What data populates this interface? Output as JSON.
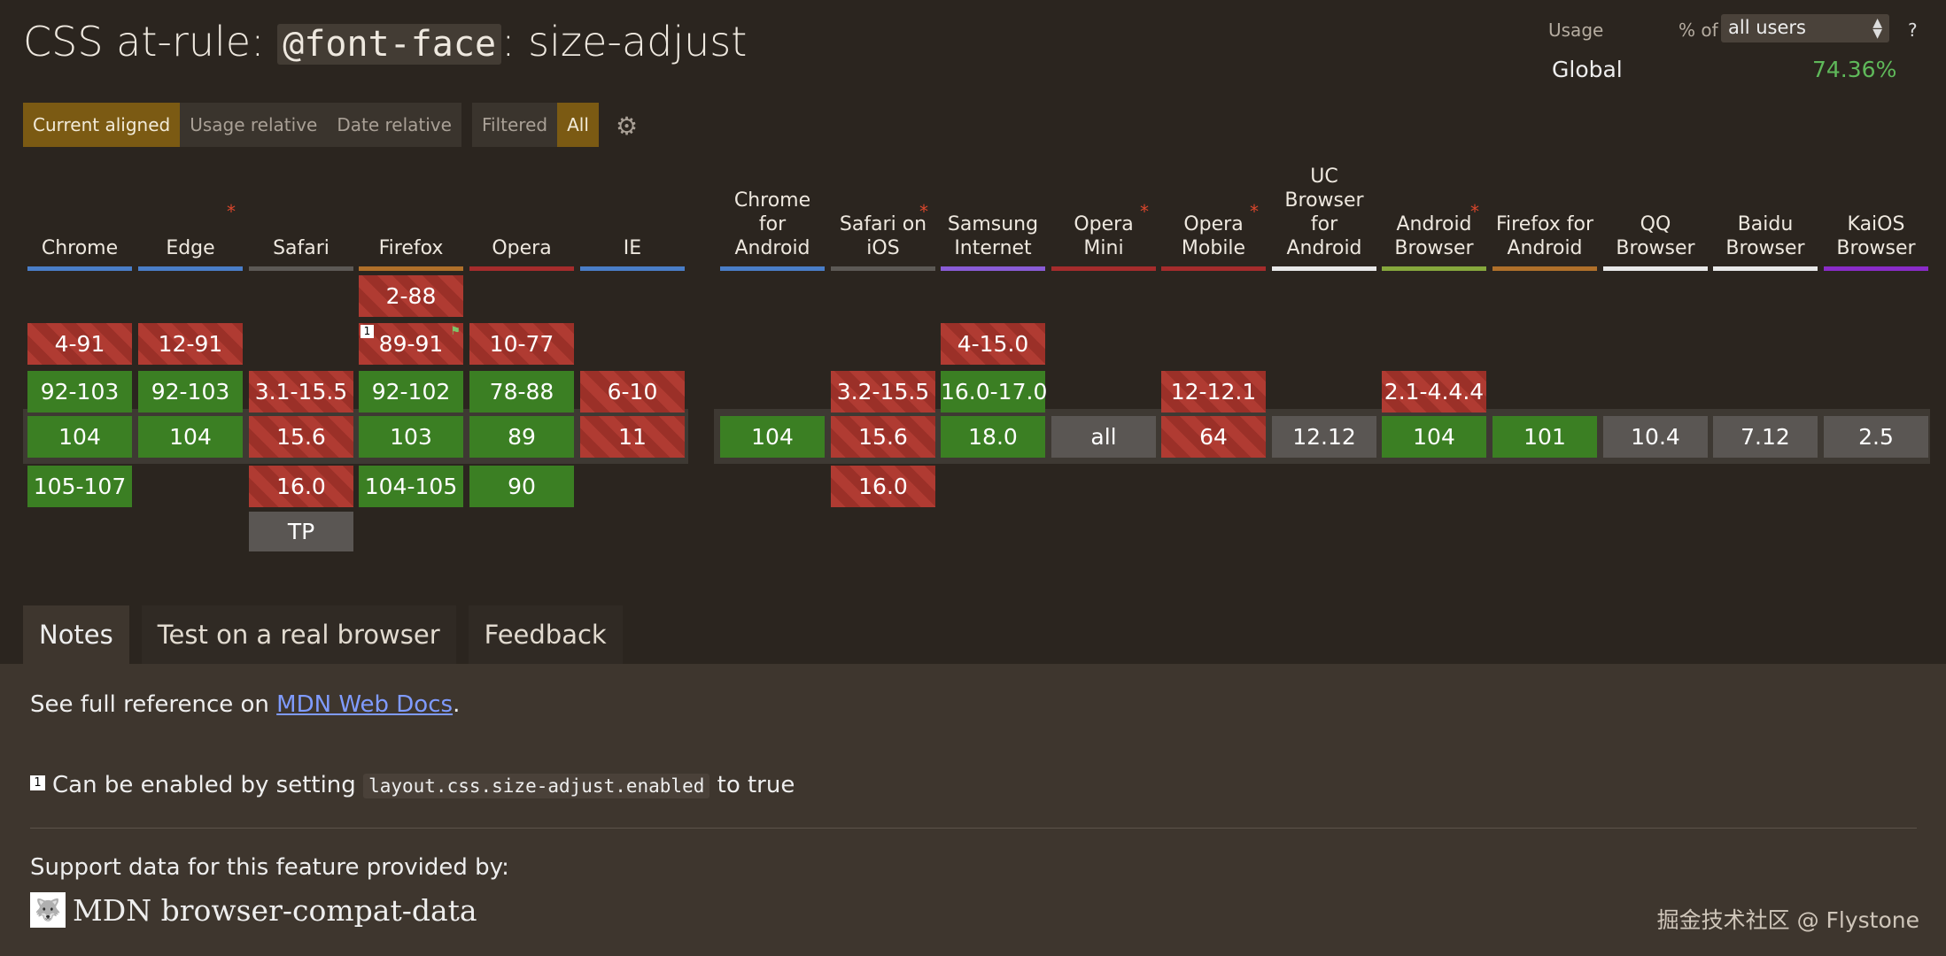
{
  "title": {
    "prefix": "CSS at-rule: ",
    "code": "@font-face",
    "suffix": ": size-adjust"
  },
  "usage": {
    "label": "Usage",
    "pct_of": "% of",
    "select_value": "all users",
    "help": "?",
    "region": "Global",
    "percent": "74.36%"
  },
  "view_tabs": [
    "Current aligned",
    "Usage relative",
    "Date relative"
  ],
  "filter_tabs": [
    "Filtered",
    "All"
  ],
  "colors": {
    "accent": "#7b5a13",
    "supported": "#3b7f23",
    "unsupported": "#b03b32",
    "unknown": "#5a5653",
    "link": "#7f9bff"
  },
  "browsers": [
    {
      "name": "Chrome",
      "color": "#4a7ec8",
      "star": false,
      "rows": [
        [
          "4-91",
          "n"
        ],
        [
          "92-103",
          "y"
        ],
        [
          "104",
          "y"
        ],
        [
          "105-107",
          "y"
        ]
      ]
    },
    {
      "name": "Edge",
      "color": "#4a7ec8",
      "star": true,
      "rows": [
        [
          "12-91",
          "n"
        ],
        [
          "92-103",
          "y"
        ],
        [
          "104",
          "y"
        ]
      ]
    },
    {
      "name": "Safari",
      "color": "#5c5955",
      "star": false,
      "rows": [
        [
          "3.1-15.5",
          "n"
        ],
        [
          "15.6",
          "n"
        ],
        [
          "16.0",
          "n"
        ],
        [
          "TP",
          "u"
        ]
      ]
    },
    {
      "name": "Firefox",
      "color": "#b0702a",
      "star": false,
      "rows": [
        [
          "2-88",
          "n"
        ],
        [
          "89-91",
          "n"
        ],
        [
          "92-102",
          "y"
        ],
        [
          "103",
          "y"
        ],
        [
          "104-105",
          "y"
        ]
      ]
    },
    {
      "name": "Opera",
      "color": "#a52c2c",
      "star": false,
      "rows": [
        [
          "10-77",
          "n"
        ],
        [
          "78-88",
          "y"
        ],
        [
          "89",
          "y"
        ],
        [
          "90",
          "y"
        ]
      ]
    },
    {
      "name": "IE",
      "color": "#4a7ec8",
      "star": false,
      "rows": [
        [
          "6-10",
          "n"
        ],
        [
          "11",
          "n"
        ]
      ]
    },
    {
      "name": "Chrome for Android",
      "color": "#4a7ec8",
      "star": false,
      "rows": [
        [
          "104",
          "y"
        ]
      ]
    },
    {
      "name": "Safari on iOS",
      "color": "#5c5955",
      "star": true,
      "rows": [
        [
          "3.2-15.5",
          "n"
        ],
        [
          "15.6",
          "n"
        ],
        [
          "16.0",
          "n"
        ]
      ]
    },
    {
      "name": "Samsung Internet",
      "color": "#8a5cd6",
      "star": false,
      "rows": [
        [
          "4-15.0",
          "n"
        ],
        [
          "16.0-17.0",
          "y"
        ],
        [
          "18.0",
          "y"
        ]
      ]
    },
    {
      "name": "Opera Mini",
      "color": "#a52c2c",
      "star": true,
      "rows": [
        [
          "all",
          "u"
        ]
      ]
    },
    {
      "name": "Opera Mobile",
      "color": "#a52c2c",
      "star": true,
      "rows": [
        [
          "12-12.1",
          "n"
        ],
        [
          "64",
          "n"
        ]
      ]
    },
    {
      "name": "UC Browser for Android",
      "color": "#e8e8e8",
      "star": false,
      "rows": [
        [
          "12.12",
          "u"
        ]
      ]
    },
    {
      "name": "Android Browser",
      "color": "#86a83c",
      "star": true,
      "rows": [
        [
          "2.1-4.4.4",
          "n"
        ],
        [
          "104",
          "y"
        ]
      ]
    },
    {
      "name": "Firefox for Android",
      "color": "#b0702a",
      "star": false,
      "rows": [
        [
          "101",
          "y"
        ]
      ]
    },
    {
      "name": "QQ Browser",
      "color": "#e8e8e8",
      "star": false,
      "rows": [
        [
          "10.4",
          "u"
        ]
      ]
    },
    {
      "name": "Baidu Browser",
      "color": "#e8e8e8",
      "star": false,
      "rows": [
        [
          "7.12",
          "u"
        ]
      ]
    },
    {
      "name": "KaiOS Browser",
      "color": "#8a2cc8",
      "star": false,
      "rows": [
        [
          "2.5",
          "u"
        ]
      ]
    }
  ],
  "bottom_tabs": [
    "Notes",
    "Test on a real browser",
    "Feedback"
  ],
  "notes": {
    "mdn_prefix": "See full reference on ",
    "mdn_link": "MDN Web Docs",
    "mdn_suffix": ".",
    "note_num": "1",
    "note_prefix": "Can be enabled by setting ",
    "note_code": "layout.css.size-adjust.enabled",
    "note_suffix": " to true",
    "support_label": "Support data for this feature provided by:",
    "bcd_label": "MDN browser-compat-data",
    "bcd_icon": "wolf-head-icon"
  },
  "watermark": "掘金技术社区 @ Flystone"
}
